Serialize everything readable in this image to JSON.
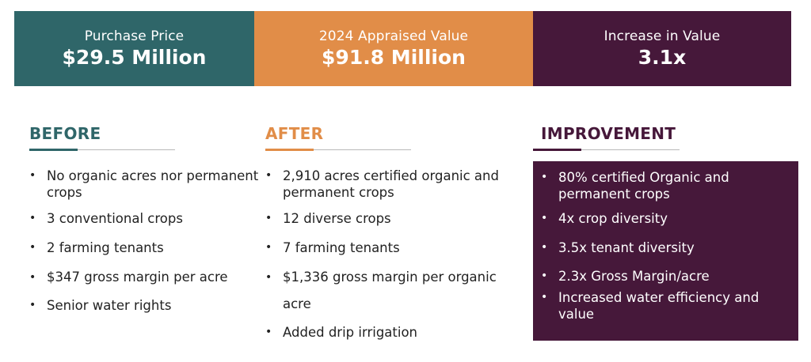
{
  "banner": {
    "stats": [
      {
        "label": "Purchase Price",
        "value": "$29.5 Million",
        "color": "#2f6669"
      },
      {
        "label": "2024 Appraised Value",
        "value": "$91.8 Million",
        "color": "#e18d48"
      },
      {
        "label": "Increase in Value",
        "value": "3.1x",
        "color": "#46183a"
      }
    ]
  },
  "before": {
    "title": "BEFORE",
    "items": [
      "No organic acres nor permanent crops",
      "3 conventional crops",
      "2 farming tenants",
      "$347 gross margin per acre",
      "Senior water rights"
    ]
  },
  "after": {
    "title": "AFTER",
    "items": [
      "2,910 acres certified organic and permanent crops",
      "12 diverse crops",
      "7 farming tenants",
      "$1,336 gross margin per organic acre",
      "Added drip irrigation"
    ]
  },
  "improvement": {
    "title": "IMPROVEMENT",
    "items": [
      "80% certified Organic and permanent crops",
      "4x crop diversity",
      "3.5x tenant diversity",
      "2.3x Gross Margin/acre",
      "Increased water efficiency and value"
    ]
  },
  "bullet": "•"
}
